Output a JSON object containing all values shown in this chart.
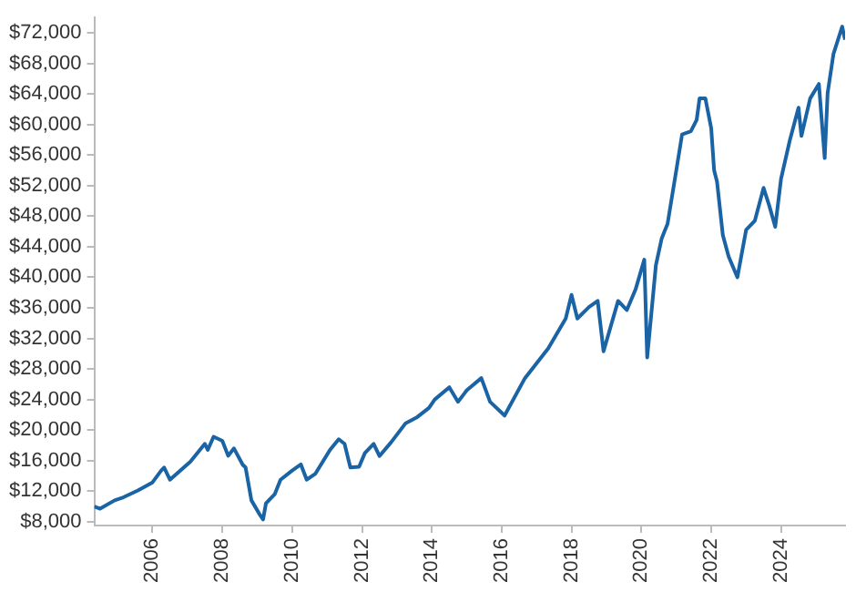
{
  "chart_data": {
    "type": "line",
    "x": [
      "2004-05",
      "2004-07",
      "2004-12",
      "2005-03",
      "2005-08",
      "2006-01",
      "2006-04",
      "2006-05",
      "2006-07",
      "2007-02",
      "2007-07",
      "2007-08",
      "2007-10",
      "2008-01",
      "2008-03",
      "2008-05",
      "2008-08",
      "2008-09",
      "2008-11",
      "2009-02",
      "2009-03",
      "2009-04",
      "2009-07",
      "2009-09",
      "2010-01",
      "2010-04",
      "2010-06",
      "2010-09",
      "2011-02",
      "2011-05",
      "2011-07",
      "2011-09",
      "2011-12",
      "2012-02",
      "2012-05",
      "2012-07",
      "2012-11",
      "2013-04",
      "2013-08",
      "2013-12",
      "2014-02",
      "2014-07",
      "2014-10",
      "2015-01",
      "2015-06",
      "2015-09",
      "2016-02",
      "2016-09",
      "2017-05",
      "2017-11",
      "2018-01",
      "2018-03",
      "2018-07",
      "2018-10",
      "2018-12",
      "2019-05",
      "2019-08",
      "2019-11",
      "2020-02",
      "2020-03",
      "2020-06",
      "2020-08",
      "2020-10",
      "2021-01",
      "2021-03",
      "2021-06",
      "2021-08",
      "2021-09",
      "2021-11",
      "2022-01",
      "2022-02",
      "2022-03",
      "2022-05",
      "2022-07",
      "2022-10",
      "2023-01",
      "2023-04",
      "2023-07",
      "2023-09",
      "2023-11",
      "2024-01",
      "2024-04",
      "2024-07",
      "2024-08",
      "2024-11",
      "2025-02",
      "2025-04",
      "2025-05",
      "2025-07",
      "2025-10",
      "2025-11"
    ],
    "series": [
      {
        "color": "#1a64a6",
        "values": [
          10000,
          9700,
          10800,
          11200,
          12100,
          13150,
          14700,
          15100,
          13500,
          15860,
          18200,
          17400,
          19130,
          18600,
          16640,
          17600,
          15470,
          15100,
          10800,
          8850,
          8300,
          10400,
          11600,
          13500,
          14700,
          15500,
          13500,
          14300,
          17400,
          18800,
          18200,
          15100,
          15200,
          17000,
          18200,
          16600,
          18400,
          20900,
          21700,
          22900,
          24000,
          25600,
          23700,
          25200,
          26800,
          23700,
          21900,
          26800,
          30700,
          34600,
          37700,
          34600,
          36100,
          36900,
          30300,
          36900,
          35700,
          38400,
          42300,
          29500,
          41600,
          45100,
          47000,
          54000,
          58700,
          59100,
          60600,
          63400,
          63400,
          59500,
          54000,
          52500,
          45500,
          42700,
          40000,
          46200,
          47400,
          51700,
          49300,
          46600,
          52900,
          57900,
          62200,
          58500,
          63400,
          65300,
          55600,
          64100,
          69200,
          72800,
          71100
        ]
      }
    ],
    "xlim": [
      "2004-05",
      "2025-11"
    ],
    "xticks": [
      "2006",
      "2008",
      "2010",
      "2012",
      "2014",
      "2016",
      "2018",
      "2020",
      "2022",
      "2024"
    ],
    "ylim": [
      7500,
      74000
    ],
    "yticks": [
      {
        "value": 8000,
        "label": "$8,000"
      },
      {
        "value": 12000,
        "label": "$12,000"
      },
      {
        "value": 16000,
        "label": "$16,000"
      },
      {
        "value": 20000,
        "label": "$20,000"
      },
      {
        "value": 24000,
        "label": "$24,000"
      },
      {
        "value": 28000,
        "label": "$28,000"
      },
      {
        "value": 32000,
        "label": "$32,000"
      },
      {
        "value": 36000,
        "label": "$36,000"
      },
      {
        "value": 40000,
        "label": "$40,000"
      },
      {
        "value": 44000,
        "label": "$44,000"
      },
      {
        "value": 48000,
        "label": "$48,000"
      },
      {
        "value": 52000,
        "label": "$52,000"
      },
      {
        "value": 56000,
        "label": "$56,000"
      },
      {
        "value": 60000,
        "label": "$60,000"
      },
      {
        "value": 64000,
        "label": "$64,000"
      },
      {
        "value": 68000,
        "label": "$68,000"
      },
      {
        "value": 72000,
        "label": "$72,000"
      }
    ],
    "grid": false,
    "legend": false,
    "marker": "none",
    "line_style": "solid"
  }
}
